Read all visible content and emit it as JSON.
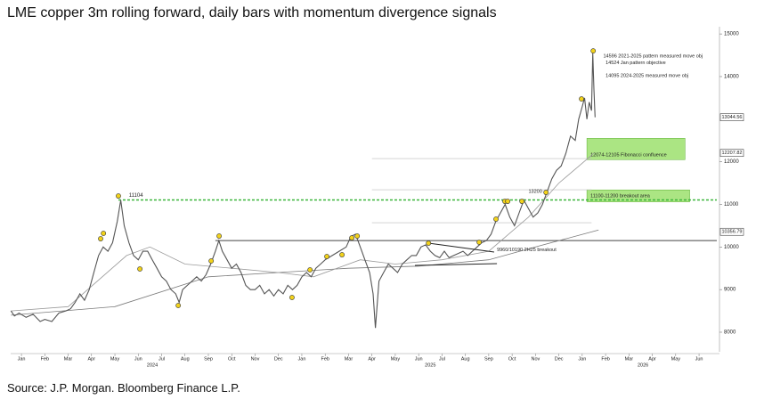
{
  "chart_data": {
    "type": "ohlc-line",
    "title": "LME copper 3m rolling forward, daily bars with momentum divergence signals",
    "source": "Source: J.P. Morgan. Bloomberg Finance L.P.",
    "xlim": [
      -0.46,
      29.76
    ],
    "ylim": [
      7540,
      15170
    ],
    "yticks": [
      8000,
      9000,
      10000,
      11000,
      12000,
      14000,
      15000
    ],
    "xticks": [
      {
        "value": 0,
        "label": "Jan"
      },
      {
        "value": 1,
        "label": "Feb"
      },
      {
        "value": 2,
        "label": "Mar"
      },
      {
        "value": 3,
        "label": "Apr"
      },
      {
        "value": 4,
        "label": "May"
      },
      {
        "value": 5,
        "label": "Jun"
      },
      {
        "value": 6,
        "label": "Jul"
      },
      {
        "value": 7,
        "label": "Aug"
      },
      {
        "value": 8,
        "label": "Sep"
      },
      {
        "value": 9,
        "label": "Oct"
      },
      {
        "value": 10,
        "label": "Nov"
      },
      {
        "value": 11,
        "label": "Dec"
      },
      {
        "value": 12,
        "label": "Jan"
      },
      {
        "value": 13,
        "label": "Feb"
      },
      {
        "value": 14,
        "label": "Mar"
      },
      {
        "value": 15,
        "label": "Apr"
      },
      {
        "value": 16,
        "label": "May"
      },
      {
        "value": 17,
        "label": "Jun"
      },
      {
        "value": 18,
        "label": "Jul"
      },
      {
        "value": 19,
        "label": "Aug"
      },
      {
        "value": 20,
        "label": "Sep"
      },
      {
        "value": 21,
        "label": "Oct"
      },
      {
        "value": 22,
        "label": "Nov"
      },
      {
        "value": 23,
        "label": "Dec"
      },
      {
        "value": 24,
        "label": "Jan"
      },
      {
        "value": 25,
        "label": "Feb"
      },
      {
        "value": 26,
        "label": "Mar"
      },
      {
        "value": 27,
        "label": "Apr"
      },
      {
        "value": 28,
        "label": "May"
      },
      {
        "value": 29,
        "label": "Jun"
      }
    ],
    "year_labels": [
      {
        "value": 5.6,
        "label": "2024"
      },
      {
        "value": 17.5,
        "label": "2025"
      },
      {
        "value": 26.6,
        "label": "2026"
      }
    ],
    "price_tags": [
      13044.56,
      12207.82,
      10356.79
    ],
    "price": {
      "color": "#555555",
      "x": [
        -0.45,
        -0.3,
        -0.1,
        0.2,
        0.5,
        0.8,
        1.0,
        1.3,
        1.6,
        1.9,
        2.1,
        2.3,
        2.5,
        2.7,
        2.9,
        3.1,
        3.3,
        3.5,
        3.7,
        3.9,
        4.1,
        4.25,
        4.4,
        4.6,
        4.8,
        5.0,
        5.2,
        5.4,
        5.6,
        5.8,
        6.0,
        6.2,
        6.4,
        6.6,
        6.75,
        6.9,
        7.1,
        7.3,
        7.5,
        7.7,
        7.9,
        8.1,
        8.3,
        8.45,
        8.6,
        8.8,
        9.0,
        9.2,
        9.4,
        9.6,
        9.8,
        10.0,
        10.2,
        10.4,
        10.6,
        10.8,
        11.0,
        11.2,
        11.4,
        11.6,
        11.8,
        12.0,
        12.2,
        12.4,
        12.6,
        12.8,
        13.0,
        13.3,
        13.6,
        13.9,
        14.1,
        14.3,
        14.5,
        14.7,
        14.9,
        15.05,
        15.15,
        15.3,
        15.5,
        15.7,
        15.9,
        16.1,
        16.3,
        16.5,
        16.7,
        16.9,
        17.1,
        17.3,
        17.5,
        17.7,
        17.9,
        18.1,
        18.3,
        18.5,
        18.7,
        18.9,
        19.1,
        19.3,
        19.5,
        19.7,
        19.9,
        20.1,
        20.3,
        20.5,
        20.7,
        20.9,
        21.1,
        21.3,
        21.5,
        21.7,
        21.9,
        22.1,
        22.3,
        22.5,
        22.7,
        22.9,
        23.1,
        23.3,
        23.5,
        23.7,
        23.85,
        24.0,
        24.1,
        24.2,
        24.3,
        24.4,
        24.45,
        24.5,
        24.55
      ],
      "values": [
        8500,
        8380,
        8450,
        8350,
        8420,
        8250,
        8300,
        8250,
        8450,
        8500,
        8550,
        8700,
        8900,
        8750,
        9000,
        9400,
        9800,
        10000,
        9900,
        10100,
        10600,
        11100,
        10500,
        10100,
        9800,
        9700,
        9900,
        9900,
        9700,
        9500,
        9300,
        9200,
        9000,
        8900,
        8700,
        9000,
        9100,
        9200,
        9300,
        9200,
        9350,
        9600,
        9900,
        10150,
        9900,
        9700,
        9500,
        9600,
        9400,
        9100,
        9000,
        9000,
        9100,
        8900,
        9000,
        8850,
        9000,
        8900,
        9100,
        9000,
        9100,
        9300,
        9400,
        9300,
        9500,
        9600,
        9700,
        9800,
        9900,
        10000,
        10250,
        10300,
        10000,
        9700,
        9400,
        8900,
        8100,
        9200,
        9400,
        9600,
        9500,
        9400,
        9600,
        9700,
        9800,
        9800,
        10000,
        10050,
        9900,
        9800,
        9750,
        9900,
        9750,
        9800,
        9850,
        9900,
        9800,
        9900,
        10000,
        10100,
        10150,
        10300,
        10600,
        10800,
        11000,
        10700,
        10500,
        10800,
        11100,
        10900,
        10700,
        10800,
        11000,
        11300,
        11600,
        11800,
        11900,
        12200,
        12600,
        12500,
        13000,
        13300,
        13500,
        13000,
        13400,
        13200,
        14550,
        13700,
        13044
      ]
    },
    "ma_fast": {
      "color": "#9a9a9a",
      "x": [
        -0.45,
        2,
        4.5,
        5.5,
        7,
        9,
        11,
        12.5,
        14.5,
        16,
        18,
        20,
        21.7,
        23,
        24.5
      ],
      "values": [
        8500,
        8600,
        9800,
        10000,
        9600,
        9500,
        9400,
        9300,
        9700,
        9600,
        9700,
        9900,
        10700,
        11500,
        12200
      ]
    },
    "ma_slow": {
      "color": "#7a7a7a",
      "x": [
        -0.45,
        4,
        8,
        11,
        14,
        17,
        20,
        22,
        24.7
      ],
      "values": [
        8400,
        8600,
        9300,
        9400,
        9500,
        9550,
        9700,
        10000,
        10400
      ]
    },
    "signals": {
      "color": "#f2d21b",
      "x": [
        3.51,
        3.39,
        4.15,
        5.07,
        6.71,
        8.12,
        8.46,
        11.58,
        12.35,
        13.07,
        13.72,
        14.14,
        14.37,
        17.42,
        19.59,
        20.31,
        20.69,
        20.81,
        21.42,
        22.45,
        23.97,
        24.47
      ],
      "values": [
        10320,
        10194,
        11197,
        9484,
        8627,
        9672,
        10257,
        8815,
        9463,
        9776,
        9818,
        10215,
        10257,
        10090,
        10111,
        10654,
        11072,
        11072,
        11072,
        11281,
        13475,
        14603
      ]
    },
    "breakout_line": {
      "value": 11104,
      "label": "11104",
      "color": "#3ab53a"
    },
    "resistance_line": {
      "value": 10150,
      "x": [
        8.3,
        29.76
      ]
    },
    "minor_levels": [
      12075,
      11343,
      10570
    ],
    "triangle": [
      {
        "x": [
          17.42,
          20.23
        ],
        "values": [
          10090,
          9881
        ]
      },
      {
        "x": [
          16.84,
          20.35
        ],
        "values": [
          9567,
          9609
        ]
      }
    ],
    "zones": [
      {
        "label": "12074-12105 Fibonacci confluence",
        "x": [
          24.2,
          28.4
        ],
        "values": [
          12050,
          12550
        ]
      },
      {
        "label": "11100-11200 breakout area",
        "x": [
          24.2,
          28.6
        ],
        "values": [
          11060,
          11340
        ]
      }
    ],
    "annotations": [
      {
        "text": "14596 2021-2025 pattern measured move obj",
        "x": 24.9,
        "y": 14480
      },
      {
        "text": "14524 Jan pattern objective",
        "x": 25.0,
        "y": 14320
      },
      {
        "text": "14095 2024-2025 measured move obj",
        "x": 25.0,
        "y": 14020
      },
      {
        "text": "13200",
        "x": 21.7,
        "y": 11300
      },
      {
        "text": "9960/10190 2H25 breakout",
        "x": 20.35,
        "y": 9930
      }
    ],
    "color": "#222222"
  }
}
